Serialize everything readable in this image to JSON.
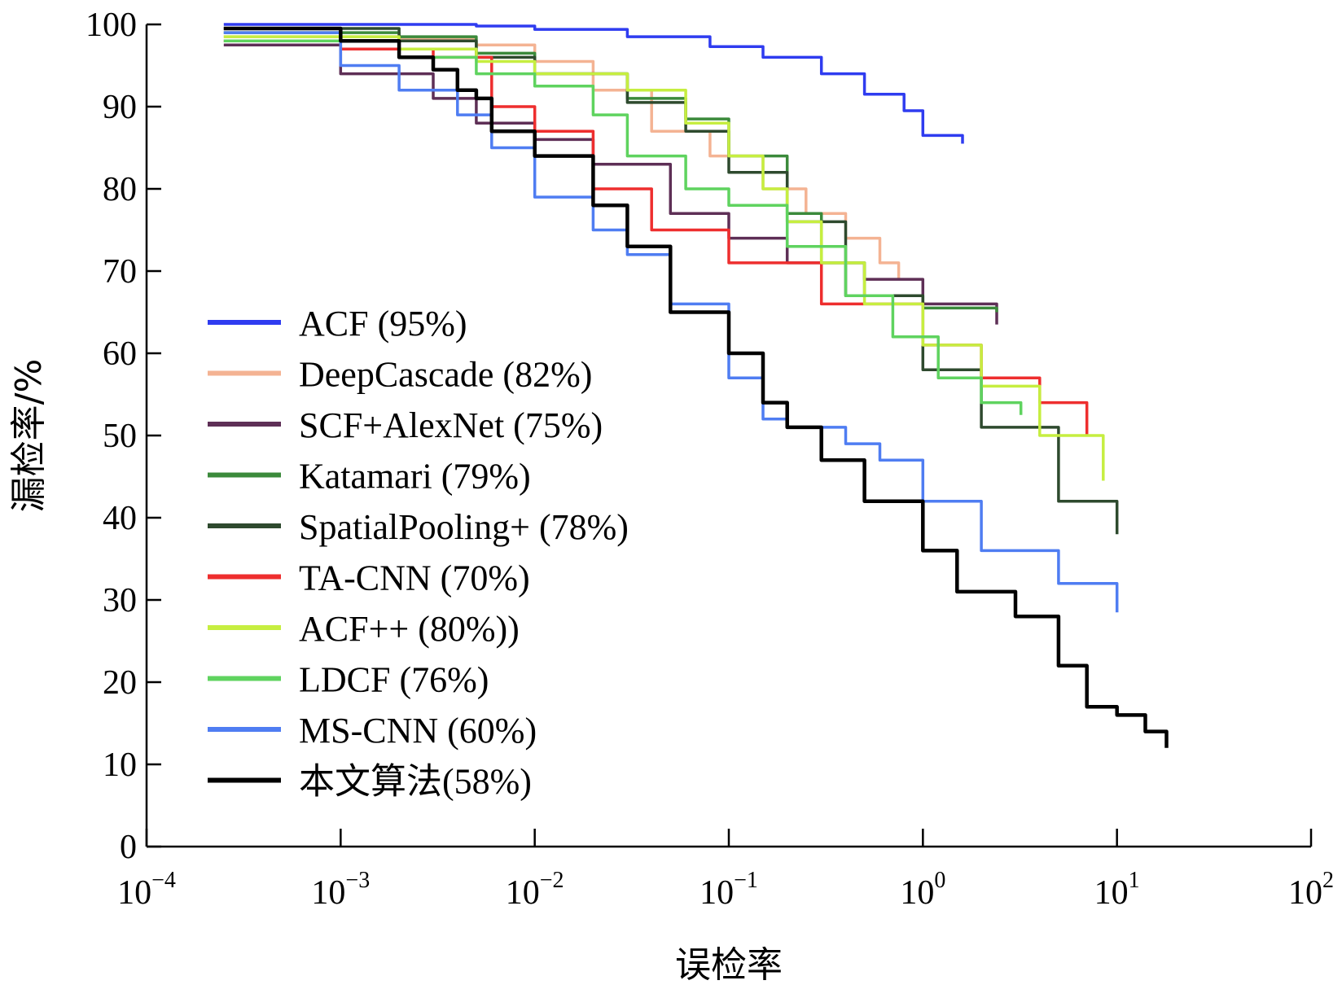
{
  "chart_data": {
    "type": "line",
    "xlabel": "误检率",
    "ylabel": "漏检率/%",
    "xscale": "log",
    "xlim": [
      0.0001,
      100
    ],
    "ylim": [
      0,
      100
    ],
    "x_ticks": [
      {
        "base": "10",
        "exp": "−4"
      },
      {
        "base": "10",
        "exp": "−3"
      },
      {
        "base": "10",
        "exp": "−2"
      },
      {
        "base": "10",
        "exp": "−1"
      },
      {
        "base": "10",
        "exp": "0"
      },
      {
        "base": "10",
        "exp": "1"
      },
      {
        "base": "10",
        "exp": "2"
      }
    ],
    "y_ticks": [
      "0",
      "10",
      "20",
      "30",
      "40",
      "50",
      "60",
      "70",
      "80",
      "90",
      "100"
    ],
    "grid": false,
    "legend_position": "lower-left",
    "series": [
      {
        "name": "ACF (95%)",
        "color": "#2f3cf0",
        "x": [
          0.00025,
          0.001,
          0.005,
          0.01,
          0.03,
          0.08,
          0.15,
          0.3,
          0.5,
          0.8,
          1.0,
          1.6
        ],
        "y": [
          100,
          100,
          99.8,
          99.4,
          98.5,
          97.3,
          96,
          94,
          91.5,
          89.5,
          86.5,
          85.5
        ]
      },
      {
        "name": "DeepCascade (82%)",
        "color": "#f4b393",
        "x": [
          0.00025,
          0.002,
          0.005,
          0.01,
          0.02,
          0.04,
          0.08,
          0.15,
          0.25,
          0.4,
          0.6,
          0.75
        ],
        "y": [
          98.5,
          98.3,
          97.5,
          95.5,
          92,
          87,
          84,
          80,
          77,
          74,
          71,
          69
        ]
      },
      {
        "name": "SCF+AlexNet (75%)",
        "color": "#5e2f56",
        "x": [
          0.00025,
          0.001,
          0.003,
          0.005,
          0.01,
          0.02,
          0.05,
          0.1,
          0.2,
          0.5,
          1.0,
          2.4
        ],
        "y": [
          97.5,
          94,
          91,
          88,
          86,
          83,
          77,
          74,
          71,
          69,
          66,
          63.5
        ]
      },
      {
        "name": "Katamari (79%)",
        "color": "#3b8a3b",
        "x": [
          0.00025,
          0.002,
          0.005,
          0.01,
          0.03,
          0.06,
          0.1,
          0.2,
          0.3,
          0.5,
          1.0,
          2.4
        ],
        "y": [
          99,
          98.5,
          96.5,
          94,
          91,
          88.5,
          84,
          77,
          71,
          67,
          65.5,
          65
        ]
      },
      {
        "name": "SpatialPooling+ (78%)",
        "color": "#2e4a2e",
        "x": [
          0.00025,
          0.002,
          0.005,
          0.01,
          0.03,
          0.06,
          0.1,
          0.2,
          0.4,
          1.0,
          2.0,
          5.0,
          10
        ],
        "y": [
          99.5,
          98,
          96,
          94,
          90.5,
          87,
          82,
          76,
          67,
          58,
          51,
          42,
          38
        ]
      },
      {
        "name": "TA-CNN (70%)",
        "color": "#ee2e2e",
        "x": [
          0.00025,
          0.001,
          0.003,
          0.006,
          0.01,
          0.02,
          0.04,
          0.1,
          0.3,
          1.0,
          2.0,
          4.0,
          7.0
        ],
        "y": [
          98,
          97,
          96,
          90,
          87,
          80,
          75,
          71,
          66,
          61,
          57,
          54,
          50
        ]
      },
      {
        "name": "ACF++  (80%))",
        "color": "#c6ee40",
        "x": [
          0.00025,
          0.002,
          0.005,
          0.01,
          0.03,
          0.06,
          0.1,
          0.15,
          0.2,
          0.3,
          0.5,
          1.0,
          2.0,
          4.0,
          8.5
        ],
        "y": [
          98.5,
          97,
          95.5,
          94,
          92,
          88,
          84,
          80,
          76,
          71,
          66,
          61,
          56,
          50,
          44.5
        ]
      },
      {
        "name": "LDCF (76%)",
        "color": "#5fd35f",
        "x": [
          0.00025,
          0.002,
          0.005,
          0.01,
          0.02,
          0.03,
          0.06,
          0.1,
          0.2,
          0.4,
          0.7,
          1.2,
          2.0,
          3.2
        ],
        "y": [
          98,
          96,
          94,
          92.5,
          89,
          84,
          80,
          78,
          73,
          67,
          62,
          57,
          54,
          52.5
        ]
      },
      {
        "name": "MS-CNN (60%)",
        "color": "#4f7df2",
        "x": [
          0.00025,
          0.001,
          0.002,
          0.004,
          0.006,
          0.01,
          0.02,
          0.03,
          0.05,
          0.1,
          0.15,
          0.2,
          0.4,
          0.6,
          1.0,
          2.0,
          5.0,
          10
        ],
        "y": [
          99,
          95,
          92,
          89,
          85,
          79,
          75,
          72,
          66,
          57,
          52,
          51,
          49,
          47,
          42,
          36,
          32,
          28.5
        ]
      },
      {
        "name": "本文算法(58%)",
        "color": "#000000",
        "x": [
          0.00025,
          0.001,
          0.002,
          0.003,
          0.004,
          0.005,
          0.006,
          0.01,
          0.02,
          0.03,
          0.05,
          0.1,
          0.15,
          0.2,
          0.3,
          0.5,
          1.0,
          1.5,
          3.0,
          5.0,
          7.0,
          10,
          14,
          18
        ],
        "y": [
          99.5,
          98,
          96,
          94.5,
          92,
          91,
          87,
          84,
          78,
          73,
          65,
          60,
          54,
          51,
          47,
          42,
          36,
          31,
          28,
          22,
          17,
          16,
          14,
          12
        ]
      }
    ]
  }
}
